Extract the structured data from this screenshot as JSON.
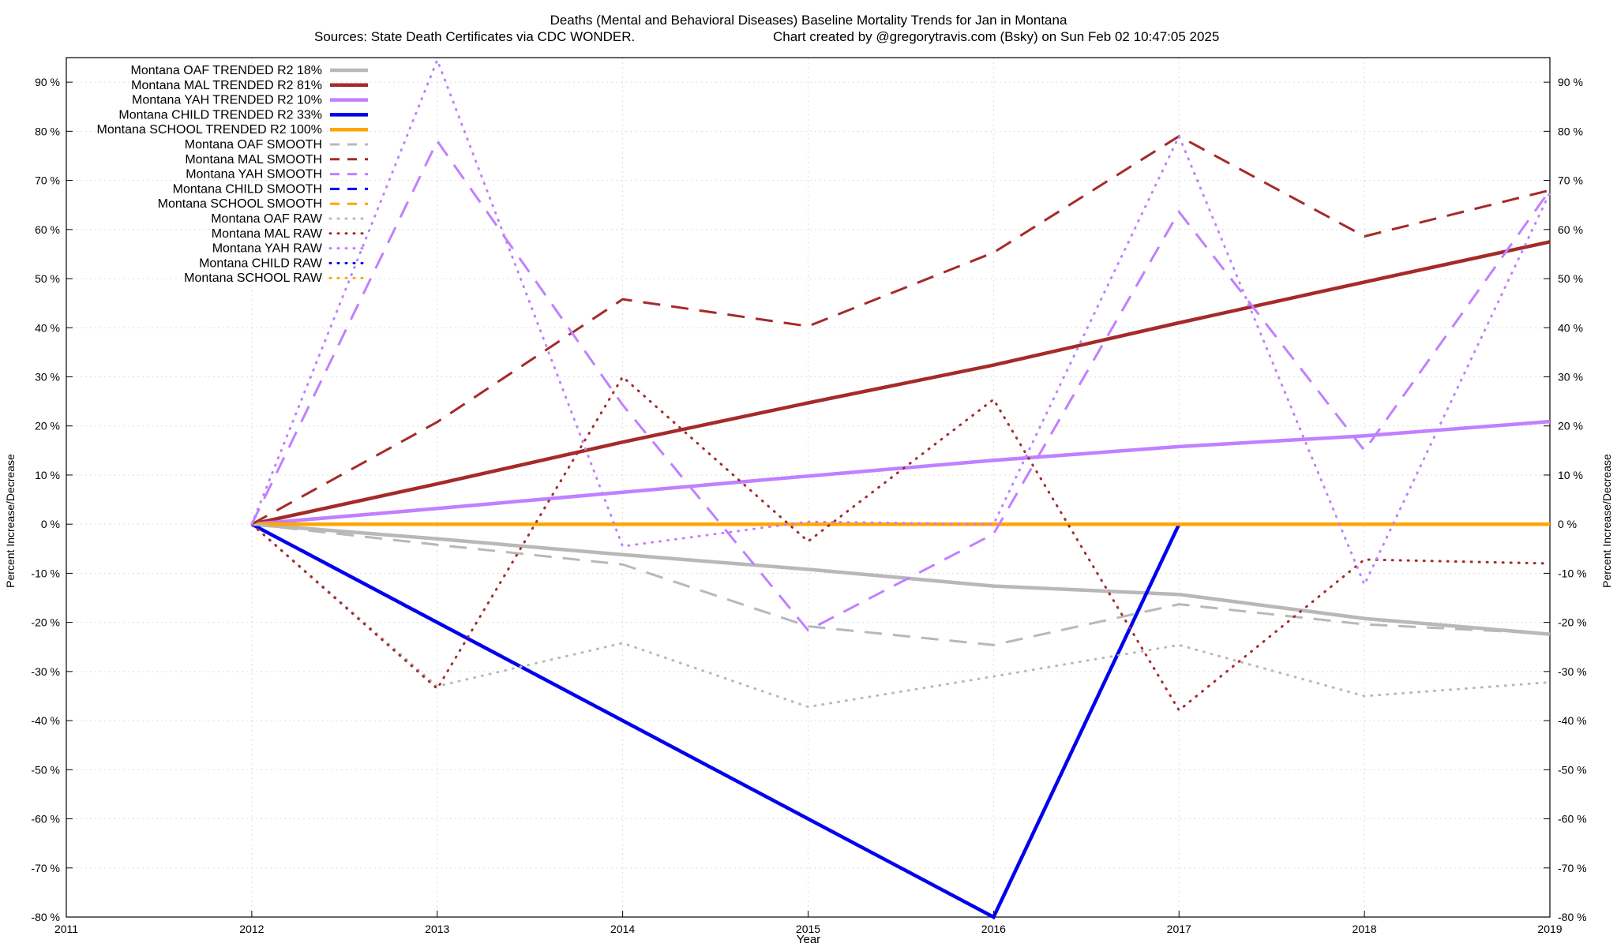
{
  "chart_data": {
    "type": "line",
    "title": "Deaths (Mental and Behavioral Diseases)  Baseline Mortality Trends for Jan in Montana",
    "subtitle_left": "Sources: State Death Certificates via CDC WONDER.",
    "subtitle_right": "Chart created by @gregorytravis.com (Bsky) on Sun Feb 02 10:47:05 2025",
    "xlabel": "Year",
    "ylabel": "Percent Increase/Decrease",
    "ylabel_right": "Percent Increase/Decrease",
    "xlim": [
      2011,
      2019
    ],
    "ylim": [
      -80,
      95
    ],
    "x_ticks": [
      2011,
      2012,
      2013,
      2014,
      2015,
      2016,
      2017,
      2018,
      2019
    ],
    "x_tick_labels": [
      "2011",
      "2012",
      "2013",
      "2014",
      "2015",
      "2016",
      "2017",
      "2018",
      "2019"
    ],
    "y_ticks": [
      -80,
      -70,
      -60,
      -50,
      -40,
      -30,
      -20,
      -10,
      0,
      10,
      20,
      30,
      40,
      50,
      60,
      70,
      80,
      90
    ],
    "y_tick_labels": [
      "-80 %",
      "-70 %",
      "-60 %",
      "-50 %",
      "-40 %",
      "-30 %",
      "-20 %",
      "-10 %",
      "0 %",
      "10 %",
      "20 %",
      "30 %",
      "40 %",
      "50 %",
      "60 %",
      "70 %",
      "80 %",
      "90 %"
    ],
    "grid": true,
    "legend_position": "top-left",
    "colors": {
      "OAF": "#b8b8b8",
      "MAL": "#a52a2a",
      "YAH": "#c080ff",
      "CHILD": "#0000ee",
      "SCHOOL": "#ffa500",
      "grid": "#dddddd",
      "axis": "#000000"
    },
    "series": [
      {
        "name": "Montana OAF TRENDED R2  18%",
        "group": "OAF",
        "style": "trend",
        "x": [
          2012,
          2013,
          2014,
          2015,
          2016,
          2017,
          2018,
          2019
        ],
        "y": [
          0,
          -3,
          -6.2,
          -9.2,
          -12.6,
          -14.3,
          -19.2,
          -22.4
        ]
      },
      {
        "name": "Montana MAL TRENDED R2  81%",
        "group": "MAL",
        "style": "trend",
        "x": [
          2012,
          2013,
          2014,
          2015,
          2016,
          2017,
          2018,
          2019
        ],
        "y": [
          0,
          8.2,
          16.7,
          24.7,
          32.4,
          41,
          49.3,
          57.5
        ]
      },
      {
        "name": "Montana YAH TRENDED R2  10%",
        "group": "YAH",
        "style": "trend",
        "x": [
          2012,
          2013,
          2014,
          2015,
          2016,
          2017,
          2018,
          2019
        ],
        "y": [
          0,
          3.2,
          6.5,
          9.8,
          13,
          15.8,
          18,
          20.9
        ]
      },
      {
        "name": "Montana CHILD TRENDED R2  33%",
        "group": "CHILD",
        "style": "trend",
        "x": [
          2012,
          2016,
          2017,
          2019
        ],
        "y": [
          0,
          -80,
          0,
          0
        ]
      },
      {
        "name": "Montana SCHOOL TRENDED R2 100%",
        "group": "SCHOOL",
        "style": "trend",
        "x": [
          2012,
          2013,
          2014,
          2015,
          2016,
          2017,
          2018,
          2019
        ],
        "y": [
          0,
          0,
          0,
          0,
          0,
          0,
          0,
          0
        ]
      },
      {
        "name": "Montana OAF SMOOTH",
        "group": "OAF",
        "style": "smooth",
        "x": [
          2012,
          2013,
          2014,
          2015,
          2016,
          2017,
          2018,
          2019
        ],
        "y": [
          0,
          -4.2,
          -8.2,
          -20.8,
          -24.6,
          -16.3,
          -20.4,
          -22.3
        ]
      },
      {
        "name": "Montana MAL SMOOTH",
        "group": "MAL",
        "style": "smooth",
        "x": [
          2012,
          2013,
          2014,
          2015,
          2016,
          2017,
          2018,
          2019
        ],
        "y": [
          0,
          20.8,
          45.8,
          40.3,
          55.3,
          79,
          58.6,
          68
        ]
      },
      {
        "name": "Montana YAH SMOOTH",
        "group": "YAH",
        "style": "smooth",
        "x": [
          2012,
          2013,
          2014,
          2015,
          2016,
          2017,
          2018,
          2019
        ],
        "y": [
          0,
          78,
          24.3,
          -21.6,
          -2,
          63.6,
          15,
          68
        ]
      },
      {
        "name": "Montana CHILD SMOOTH",
        "group": "CHILD",
        "style": "smooth",
        "x": [],
        "y": []
      },
      {
        "name": "Montana SCHOOL SMOOTH",
        "group": "SCHOOL",
        "style": "smooth",
        "x": [],
        "y": []
      },
      {
        "name": "Montana OAF RAW",
        "group": "OAF",
        "style": "raw",
        "x": [
          2012,
          2013,
          2014,
          2015,
          2016,
          2017,
          2018,
          2019
        ],
        "y": [
          0,
          -33,
          -24.2,
          -37.2,
          -31,
          -24.6,
          -35,
          -32.2
        ]
      },
      {
        "name": "Montana MAL RAW",
        "group": "MAL",
        "style": "raw",
        "x": [
          2012,
          2013,
          2014,
          2015,
          2016,
          2017,
          2018,
          2019
        ],
        "y": [
          0,
          -33.5,
          30,
          -3.5,
          25.4,
          -37.9,
          -7.2,
          -8
        ]
      },
      {
        "name": "Montana YAH RAW",
        "group": "YAH",
        "style": "raw",
        "x": [
          2012,
          2013,
          2014,
          2015,
          2016,
          2017,
          2018,
          2019
        ],
        "y": [
          0,
          94.5,
          -4.5,
          0.5,
          0,
          79,
          -12.3,
          67.5
        ]
      },
      {
        "name": "Montana CHILD RAW",
        "group": "CHILD",
        "style": "raw",
        "x": [],
        "y": []
      },
      {
        "name": "Montana SCHOOL RAW",
        "group": "SCHOOL",
        "style": "raw",
        "x": [],
        "y": []
      }
    ]
  }
}
